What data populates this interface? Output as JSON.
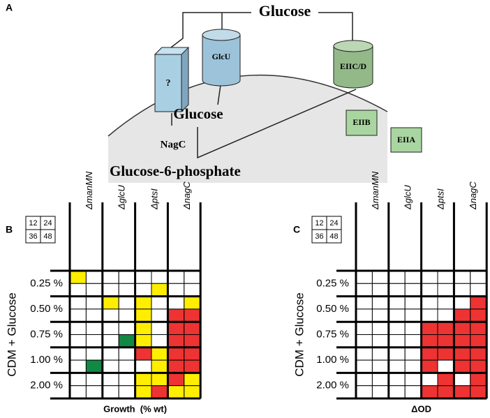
{
  "panel_a": {
    "label": "A",
    "glucose_out": "Glucose",
    "unknown": "?",
    "glcu": "GlcU",
    "eiicd": "EIIC/D",
    "glucose_in": "Glucose",
    "eiib": "EIIB",
    "eiia": "EIIA",
    "nagc": "NagC",
    "g6p": "Glucose-6-phosphate"
  },
  "panel_b": {
    "label": "B",
    "key": [
      "12",
      "24",
      "36",
      "48"
    ],
    "columns": [
      "ΔmanMN",
      "ΔglcU",
      "ΔptsI",
      "ΔnagC"
    ],
    "rows": [
      "0.25 %",
      "0.50 %",
      "0.75 %",
      "1.00 %",
      "2.00 %"
    ],
    "y_label": "CDM + Glucose",
    "x_label": "Growth  (% wt)",
    "cells": [
      [
        "#fe0",
        "#fff",
        "#fff",
        "#fff",
        "#fff",
        "#fff",
        "#fff",
        "#fff"
      ],
      [
        "#fff",
        "#fff",
        "#fff",
        "#fff",
        "#fff",
        "#fe0",
        "#fff",
        "#fff"
      ],
      [
        "#fff",
        "#fff",
        "#fe0",
        "#fff",
        "#fe0",
        "#fff",
        "#fff",
        "#fe0"
      ],
      [
        "#fff",
        "#fff",
        "#fff",
        "#fff",
        "#fe0",
        "#fff",
        "#e33",
        "#e33"
      ],
      [
        "#fff",
        "#fff",
        "#fff",
        "#fff",
        "#fe0",
        "#fff",
        "#e33",
        "#e33"
      ],
      [
        "#fff",
        "#fff",
        "#fff",
        "#184",
        "#fe0",
        "#fff",
        "#e33",
        "#e33"
      ],
      [
        "#fff",
        "#fff",
        "#fff",
        "#fff",
        "#e33",
        "#fe0",
        "#e33",
        "#e33"
      ],
      [
        "#fff",
        "#184",
        "#fff",
        "#fff",
        "#fff",
        "#fe0",
        "#e33",
        "#e33"
      ],
      [
        "#fff",
        "#fff",
        "#fff",
        "#fff",
        "#fe0",
        "#fe0",
        "#e33",
        "#fe0"
      ],
      [
        "#fff",
        "#fff",
        "#fff",
        "#fff",
        "#fe0",
        "#e33",
        "#fe0",
        "#fe0"
      ]
    ]
  },
  "panel_c": {
    "label": "C",
    "key": [
      "12",
      "24",
      "36",
      "48"
    ],
    "columns": [
      "ΔmanMN",
      "ΔglcU",
      "ΔptsI",
      "ΔnagC"
    ],
    "rows": [
      "0.25 %",
      "0.50 %",
      "0.75 %",
      "1.00 %",
      "2.00 %"
    ],
    "y_label": "CDM + Glucose",
    "x_label": "ΔOD",
    "cells": [
      [
        "#fff",
        "#fff",
        "#fff",
        "#fff",
        "#fff",
        "#fff",
        "#fff",
        "#fff"
      ],
      [
        "#fff",
        "#fff",
        "#fff",
        "#fff",
        "#fff",
        "#fff",
        "#fff",
        "#fff"
      ],
      [
        "#fff",
        "#fff",
        "#fff",
        "#fff",
        "#fff",
        "#fff",
        "#fff",
        "#e33"
      ],
      [
        "#fff",
        "#fff",
        "#fff",
        "#fff",
        "#fff",
        "#fff",
        "#e33",
        "#e33"
      ],
      [
        "#fff",
        "#fff",
        "#fff",
        "#fff",
        "#e33",
        "#e33",
        "#e33",
        "#e33"
      ],
      [
        "#fff",
        "#fff",
        "#fff",
        "#fff",
        "#e33",
        "#e33",
        "#e33",
        "#e33"
      ],
      [
        "#fff",
        "#fff",
        "#fff",
        "#fff",
        "#e33",
        "#e33",
        "#e33",
        "#e33"
      ],
      [
        "#fff",
        "#fff",
        "#fff",
        "#fff",
        "#e33",
        "#fff",
        "#e33",
        "#e33"
      ],
      [
        "#fff",
        "#fff",
        "#fff",
        "#fff",
        "#fff",
        "#e33",
        "#fff",
        "#e33"
      ],
      [
        "#fff",
        "#fff",
        "#fff",
        "#fff",
        "#e33",
        "#e33",
        "#e33",
        "#e33"
      ]
    ]
  }
}
